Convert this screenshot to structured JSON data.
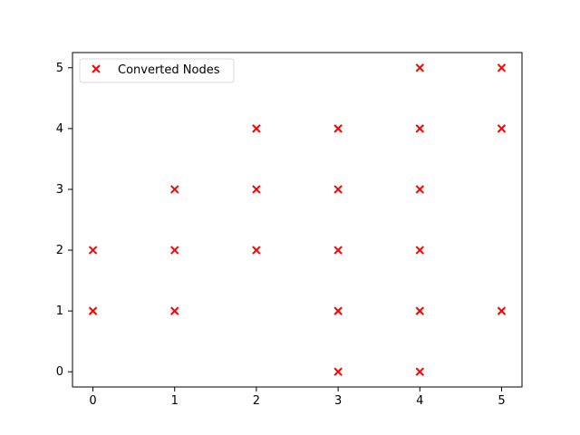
{
  "chart_data": {
    "type": "scatter",
    "title": "",
    "xlabel": "",
    "ylabel": "",
    "xlim": [
      -0.25,
      5.25
    ],
    "ylim": [
      -0.25,
      5.25
    ],
    "x_ticks": [
      0,
      1,
      2,
      3,
      4,
      5
    ],
    "y_ticks": [
      0,
      1,
      2,
      3,
      4,
      5
    ],
    "x_tick_labels": [
      "0",
      "1",
      "2",
      "3",
      "4",
      "5"
    ],
    "y_tick_labels": [
      "0",
      "1",
      "2",
      "3",
      "4",
      "5"
    ],
    "grid": false,
    "legend": {
      "position": "upper-left",
      "entries": [
        "Converted Nodes"
      ]
    },
    "series": [
      {
        "name": "Converted Nodes",
        "marker": "x",
        "color": "#ff0000",
        "points": [
          {
            "x": 0,
            "y": 1
          },
          {
            "x": 0,
            "y": 2
          },
          {
            "x": 1,
            "y": 1
          },
          {
            "x": 1,
            "y": 2
          },
          {
            "x": 1,
            "y": 3
          },
          {
            "x": 2,
            "y": 2
          },
          {
            "x": 2,
            "y": 3
          },
          {
            "x": 2,
            "y": 4
          },
          {
            "x": 3,
            "y": 0
          },
          {
            "x": 3,
            "y": 1
          },
          {
            "x": 3,
            "y": 2
          },
          {
            "x": 3,
            "y": 3
          },
          {
            "x": 3,
            "y": 4
          },
          {
            "x": 4,
            "y": 0
          },
          {
            "x": 4,
            "y": 1
          },
          {
            "x": 4,
            "y": 2
          },
          {
            "x": 4,
            "y": 3
          },
          {
            "x": 4,
            "y": 4
          },
          {
            "x": 4,
            "y": 5
          },
          {
            "x": 5,
            "y": 1
          },
          {
            "x": 5,
            "y": 4
          },
          {
            "x": 5,
            "y": 5
          }
        ]
      }
    ]
  }
}
